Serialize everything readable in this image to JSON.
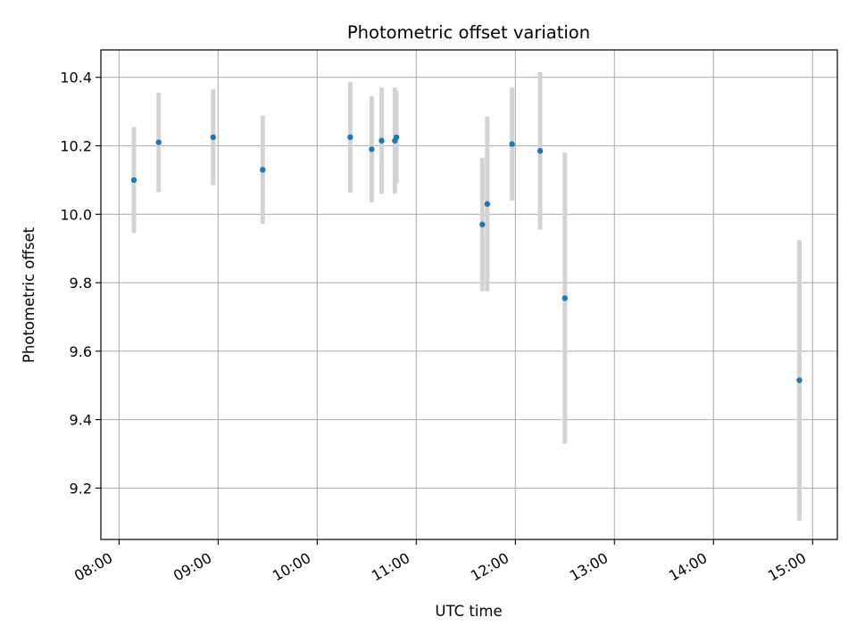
{
  "chart_data": {
    "type": "scatter",
    "title": "Photometric offset variation",
    "xlabel": "UTC time",
    "ylabel": "Photometric offset",
    "x_ticks": [
      "08:00",
      "09:00",
      "10:00",
      "11:00",
      "12:00",
      "13:00",
      "14:00",
      "15:00"
    ],
    "y_ticks": [
      "9.2",
      "9.4",
      "9.6",
      "9.8",
      "10.0",
      "10.2",
      "10.4"
    ],
    "xlim": [
      "07:49",
      "15:15"
    ],
    "ylim": [
      9.05,
      10.48
    ],
    "grid": true,
    "points": [
      {
        "x": "08:09",
        "y": 10.1,
        "err": 0.155
      },
      {
        "x": "08:24",
        "y": 10.21,
        "err": 0.145
      },
      {
        "x": "08:57",
        "y": 10.225,
        "err": 0.14
      },
      {
        "x": "09:27",
        "y": 10.13,
        "err": 0.158
      },
      {
        "x": "10:20",
        "y": 10.225,
        "err": 0.162
      },
      {
        "x": "10:33",
        "y": 10.19,
        "err": 0.155
      },
      {
        "x": "10:39",
        "y": 10.215,
        "err": 0.155
      },
      {
        "x": "10:47",
        "y": 10.215,
        "err": 0.155
      },
      {
        "x": "10:48",
        "y": 10.225,
        "err": 0.135
      },
      {
        "x": "11:40",
        "y": 9.97,
        "err": 0.195
      },
      {
        "x": "11:43",
        "y": 10.03,
        "err": 0.255
      },
      {
        "x": "11:58",
        "y": 10.205,
        "err": 0.165
      },
      {
        "x": "12:15",
        "y": 10.185,
        "err": 0.23
      },
      {
        "x": "12:30",
        "y": 9.755,
        "err": 0.425
      },
      {
        "x": "14:52",
        "y": 9.515,
        "err": 0.41
      }
    ],
    "colors": {
      "marker": "#1f77b4",
      "errorbar": "#d3d3d3",
      "grid": "#b0b0b0",
      "axes": "#000000"
    }
  }
}
